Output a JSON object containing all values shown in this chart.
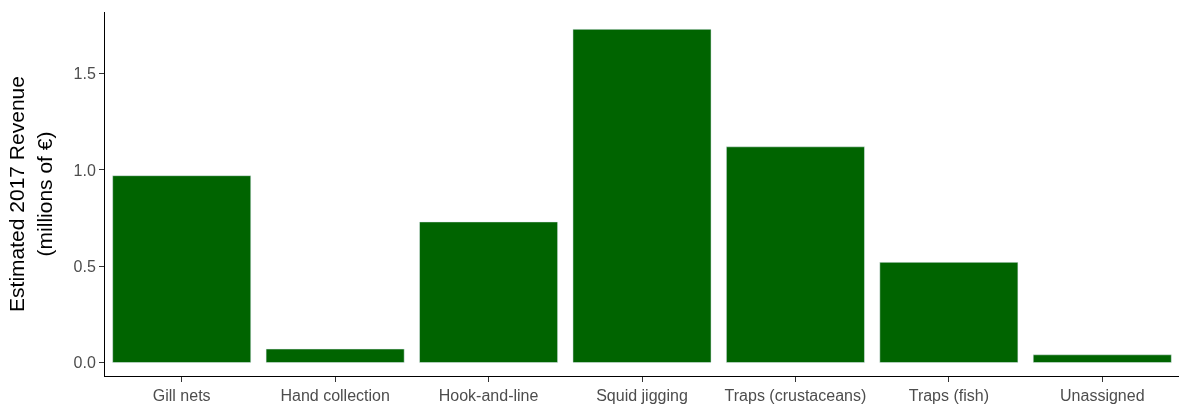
{
  "chart_data": {
    "type": "bar",
    "ylabel": "Estimated 2017 Revenue\n(millions of €)",
    "categories": [
      "Gill nets",
      "Hand collection",
      "Hook-and-line",
      "Squid jigging",
      "Traps (crustaceans)",
      "Traps (fish)",
      "Unassigned"
    ],
    "values": [
      0.97,
      0.07,
      0.73,
      1.73,
      1.12,
      0.52,
      0.04
    ],
    "color": "#006400",
    "ylim": [
      -0.07,
      1.82
    ],
    "yticks": [
      {
        "value": 0,
        "label": "0.0"
      },
      0.5,
      {
        "value": 1,
        "label": "1.0"
      },
      1.5
    ]
  }
}
